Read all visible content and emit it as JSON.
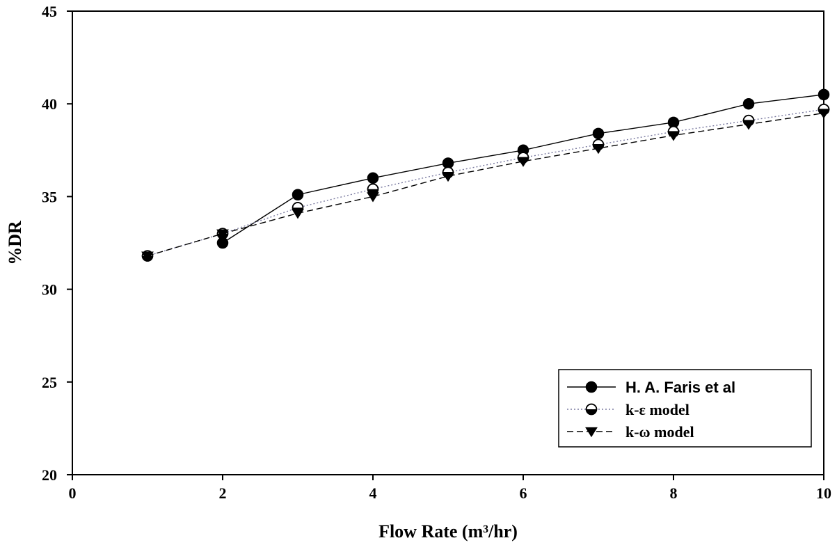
{
  "chart_data": {
    "type": "line",
    "title": "",
    "xlabel": "Flow Rate (m³/hr)",
    "ylabel": "%DR",
    "xlim": [
      0,
      10
    ],
    "ylim": [
      20,
      45
    ],
    "xticks": [
      0,
      2,
      4,
      6,
      8,
      10
    ],
    "yticks": [
      20,
      25,
      30,
      35,
      40,
      45
    ],
    "grid": false,
    "legend_position": "bottom-right",
    "x": [
      1,
      2,
      3,
      4,
      5,
      6,
      7,
      8,
      9,
      10
    ],
    "series": [
      {
        "name": "H. A. Faris et al",
        "marker": "filled-circle",
        "line": "solid",
        "x": [
          2,
          3,
          4,
          5,
          6,
          7,
          8,
          9,
          10
        ],
        "values": [
          32.5,
          35.1,
          36.0,
          36.8,
          37.5,
          38.4,
          39.0,
          40.0,
          40.5
        ]
      },
      {
        "name": "k-ε model",
        "marker": "half-filled-circle",
        "line": "dotted",
        "x": [
          1,
          2,
          3,
          4,
          5,
          6,
          7,
          8,
          9,
          10
        ],
        "values": [
          31.8,
          33.0,
          34.4,
          35.4,
          36.3,
          37.1,
          37.8,
          38.5,
          39.1,
          39.7
        ]
      },
      {
        "name": "k-ω model",
        "marker": "filled-triangle-down",
        "line": "dashed",
        "x": [
          1,
          2,
          3,
          4,
          5,
          6,
          7,
          8,
          9,
          10
        ],
        "values": [
          31.8,
          33.0,
          34.1,
          35.0,
          36.1,
          36.9,
          37.6,
          38.3,
          38.9,
          39.5
        ]
      }
    ]
  }
}
